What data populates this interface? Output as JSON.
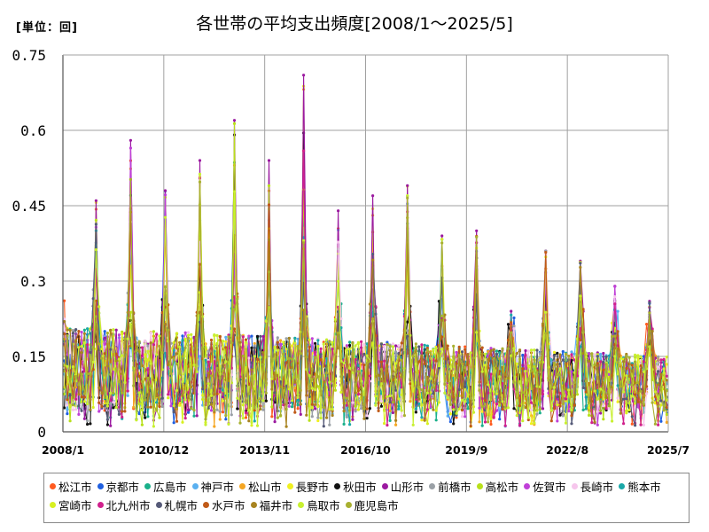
{
  "chart_data": {
    "type": "line",
    "title": "各世帯の平均支出頻度[2008/1～2025/5]",
    "unit_label": "[単位：回]",
    "ylim": [
      0,
      0.75
    ],
    "yticks": [
      "0",
      "0.15",
      "0.3",
      "0.45",
      "0.6",
      "0.75"
    ],
    "xtick_labels": [
      "2008/1",
      "2010/12",
      "2013/11",
      "2016/10",
      "2019/9",
      "2022/8",
      "2025/7"
    ],
    "grid": true,
    "legend_position": "bottom",
    "series": [
      {
        "name": "松江市",
        "color": "#ff5a1f"
      },
      {
        "name": "京都市",
        "color": "#1f5fe0"
      },
      {
        "name": "広島市",
        "color": "#19b08a"
      },
      {
        "name": "神戸市",
        "color": "#5ab0f0"
      },
      {
        "name": "松山市",
        "color": "#f5a623"
      },
      {
        "name": "長野市",
        "color": "#f0f020"
      },
      {
        "name": "秋田市",
        "color": "#111111"
      },
      {
        "name": "山形市",
        "color": "#9b1aa0"
      },
      {
        "name": "前橋市",
        "color": "#9aa0a6"
      },
      {
        "name": "高松市",
        "color": "#b8e01a"
      },
      {
        "name": "佐賀市",
        "color": "#c040d8"
      },
      {
        "name": "長崎市",
        "color": "#f6c6ec"
      },
      {
        "name": "熊本市",
        "color": "#1aa8a8"
      },
      {
        "name": "宮崎市",
        "color": "#d8f020"
      },
      {
        "name": "北九州市",
        "color": "#d0208c"
      },
      {
        "name": "札幌市",
        "color": "#555a78"
      },
      {
        "name": "水戸市",
        "color": "#c05a18"
      },
      {
        "name": "福井市",
        "color": "#a88420"
      },
      {
        "name": "鳥取市",
        "color": "#c8f030"
      },
      {
        "name": "鹿児島市",
        "color": "#a8b030"
      }
    ],
    "annual_peaks": [
      {
        "year": 2008,
        "value": 0.46
      },
      {
        "year": 2009,
        "value": 0.58
      },
      {
        "year": 2010,
        "value": 0.48
      },
      {
        "year": 2011,
        "value": 0.54
      },
      {
        "year": 2012,
        "value": 0.62
      },
      {
        "year": 2013,
        "value": 0.54
      },
      {
        "year": 2014,
        "value": 0.71
      },
      {
        "year": 2015,
        "value": 0.44
      },
      {
        "year": 2016,
        "value": 0.47
      },
      {
        "year": 2017,
        "value": 0.49
      },
      {
        "year": 2018,
        "value": 0.39
      },
      {
        "year": 2019,
        "value": 0.4
      },
      {
        "year": 2020,
        "value": 0.24
      },
      {
        "year": 2021,
        "value": 0.36
      },
      {
        "year": 2022,
        "value": 0.34
      },
      {
        "year": 2023,
        "value": 0.29
      },
      {
        "year": 2024,
        "value": 0.26
      }
    ]
  }
}
